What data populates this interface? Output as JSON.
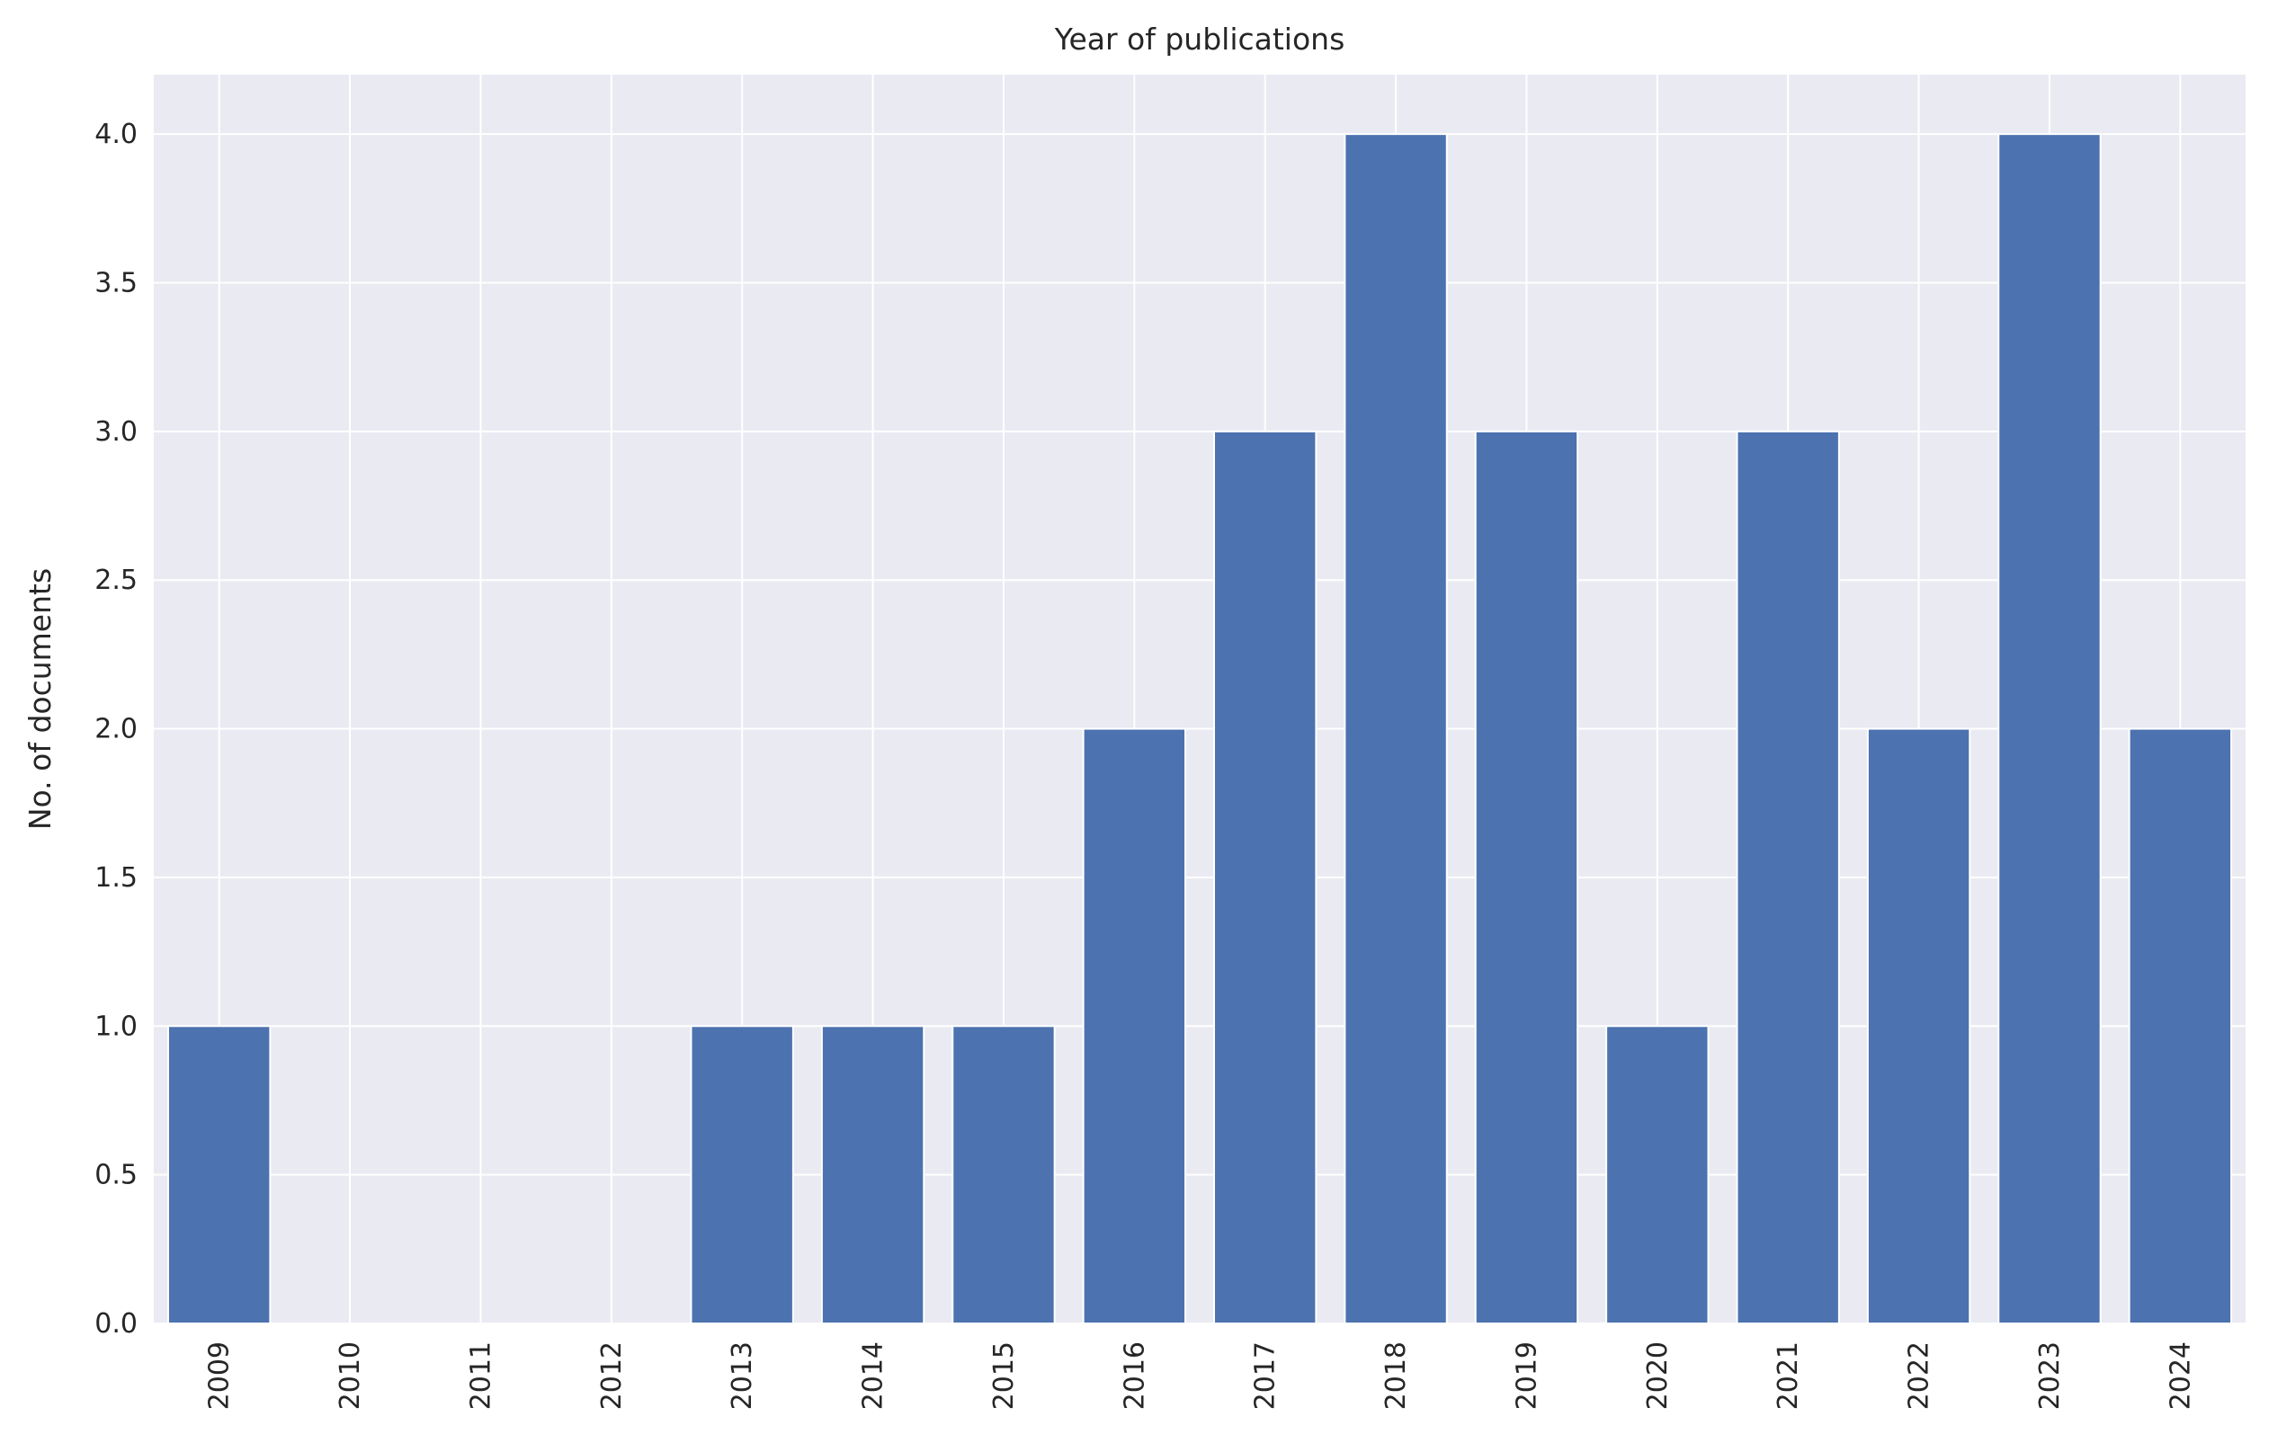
{
  "chart_data": {
    "type": "bar",
    "title": "Year of publications",
    "xlabel": "",
    "ylabel": "No. of documents",
    "categories": [
      "2009",
      "2010",
      "2011",
      "2012",
      "2013",
      "2014",
      "2015",
      "2016",
      "2017",
      "2018",
      "2019",
      "2020",
      "2021",
      "2022",
      "2023",
      "2024"
    ],
    "values": [
      1,
      0,
      0,
      0,
      1,
      1,
      1,
      2,
      3,
      4,
      3,
      1,
      3,
      2,
      4,
      2
    ],
    "ylim": [
      0,
      4.2
    ],
    "yticks": [
      "0.0",
      "0.5",
      "1.0",
      "1.5",
      "2.0",
      "2.5",
      "3.0",
      "3.5",
      "4.0"
    ],
    "grid": true,
    "legend": "none",
    "colors": {
      "bar": "#4c72b0",
      "plot_background": "#eaeaf2",
      "grid": "#ffffff",
      "text": "#262626"
    }
  }
}
